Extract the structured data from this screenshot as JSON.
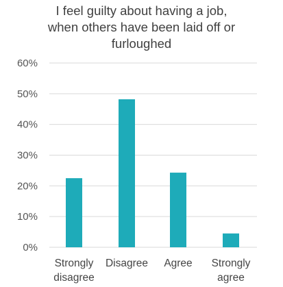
{
  "chart_data": {
    "type": "bar",
    "title_lines": [
      "I feel guilty about having a job,",
      "when others have been laid off or",
      "furloughed"
    ],
    "categories": [
      [
        "Strongly",
        "disagree"
      ],
      [
        "Disagree"
      ],
      [
        "Agree"
      ],
      [
        "Strongly",
        "agree"
      ]
    ],
    "values": [
      22.5,
      48.2,
      24.3,
      4.5
    ],
    "unit": "%",
    "ylim": [
      0,
      60
    ],
    "yticks": [
      0,
      10,
      20,
      30,
      40,
      50,
      60
    ],
    "ytick_labels": [
      "0%",
      "10%",
      "20%",
      "30%",
      "40%",
      "50%",
      "60%"
    ],
    "grid": true,
    "bar_color": "#1eabb9",
    "grid_color": "#d9d9d9"
  }
}
